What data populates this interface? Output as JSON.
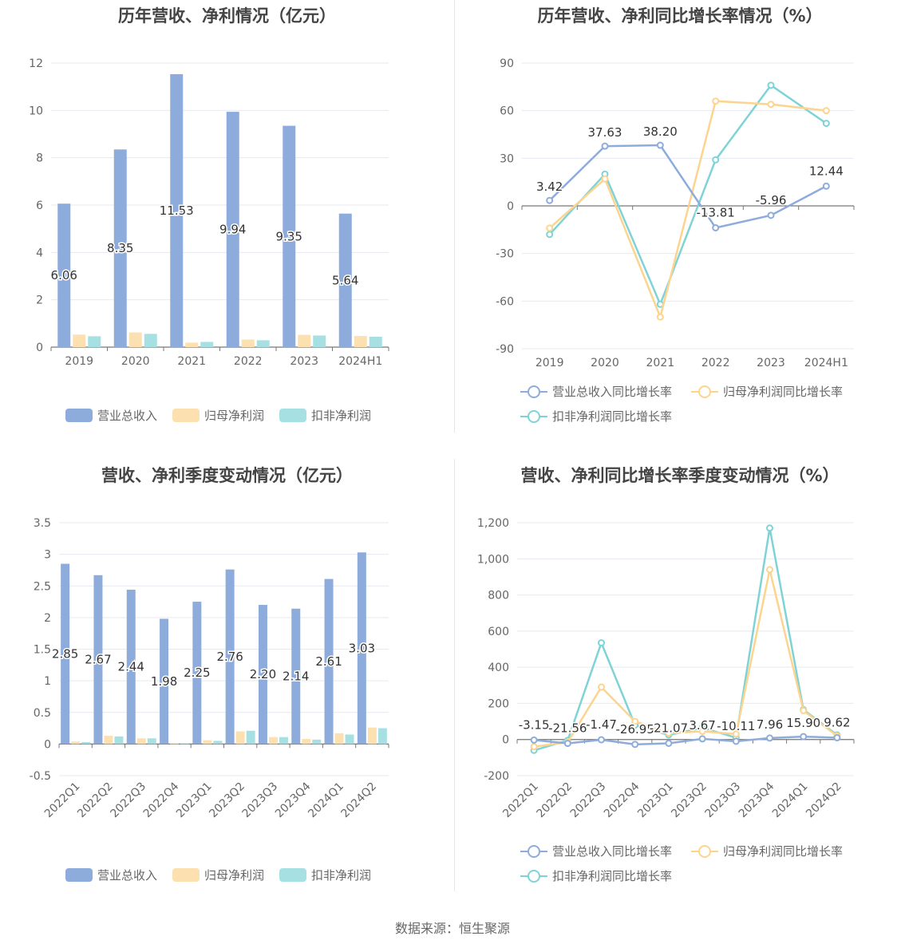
{
  "source": "数据来源：恒生聚源",
  "colors": {
    "revenue": "#8eacdb",
    "netprofit": "#fde0b0",
    "deducted": "#a6e0e3",
    "revenue_line": "#8eacdb",
    "netprofit_line": "#fdd48e",
    "deducted_line": "#7fd3d7"
  },
  "chart_data": [
    {
      "id": "annual-bars",
      "type": "bar",
      "title": "历年营收、净利情况（亿元）",
      "categories": [
        "2019",
        "2020",
        "2021",
        "2022",
        "2023",
        "2024H1"
      ],
      "ylim": [
        0,
        12
      ],
      "yticks": [
        "0",
        "2",
        "4",
        "6",
        "8",
        "10",
        "12"
      ],
      "grid": true,
      "legend_position": "bottom",
      "series": [
        {
          "name": "营业总收入",
          "values": [
            6.06,
            8.35,
            11.53,
            9.94,
            9.35,
            5.64
          ],
          "labels": [
            "6.06",
            "8.35",
            "11.53",
            "9.94",
            "9.35",
            "5.64"
          ]
        },
        {
          "name": "归母净利润",
          "values": [
            0.53,
            0.62,
            0.19,
            0.32,
            0.52,
            0.47
          ]
        },
        {
          "name": "扣非净利润",
          "values": [
            0.46,
            0.56,
            0.22,
            0.29,
            0.49,
            0.44
          ]
        }
      ]
    },
    {
      "id": "annual-growth",
      "type": "line",
      "title": "历年营收、净利同比增长率情况（%）",
      "categories": [
        "2019",
        "2020",
        "2021",
        "2022",
        "2023",
        "2024H1"
      ],
      "ylim": [
        -90,
        90
      ],
      "yticks": [
        "-90",
        "-60",
        "-30",
        "0",
        "30",
        "60",
        "90"
      ],
      "grid": true,
      "legend_position": "bottom",
      "series": [
        {
          "name": "营业总收入同比增长率",
          "values": [
            3.42,
            37.63,
            38.2,
            -13.81,
            -5.96,
            12.44
          ],
          "labels": [
            "3.42",
            "37.63",
            "38.20",
            "-13.81",
            "-5.96",
            "12.44"
          ]
        },
        {
          "name": "归母净利润同比增长率",
          "values": [
            -14,
            17,
            -70,
            66,
            64,
            60
          ]
        },
        {
          "name": "扣非净利润同比增长率",
          "values": [
            -18,
            20,
            -62,
            29,
            76,
            52
          ]
        }
      ]
    },
    {
      "id": "quarterly-bars",
      "type": "bar",
      "title": "营收、净利季度变动情况（亿元）",
      "categories": [
        "2022Q1",
        "2022Q2",
        "2022Q3",
        "2022Q4",
        "2023Q1",
        "2023Q2",
        "2023Q3",
        "2023Q4",
        "2024Q1",
        "2024Q2"
      ],
      "ylim": [
        -0.5,
        3.5
      ],
      "yticks": [
        "-0.5",
        "0",
        "0.5",
        "1",
        "1.5",
        "2",
        "2.5",
        "3",
        "3.5"
      ],
      "grid": true,
      "legend_position": "bottom",
      "series": [
        {
          "name": "营业总收入",
          "values": [
            2.85,
            2.67,
            2.44,
            1.98,
            2.25,
            2.76,
            2.2,
            2.14,
            2.61,
            3.03
          ],
          "labels": [
            "2.85",
            "2.67",
            "2.44",
            "1.98",
            "2.25",
            "2.76",
            "2.20",
            "2.14",
            "2.61",
            "3.03"
          ]
        },
        {
          "name": "归母净利润",
          "values": [
            0.04,
            0.13,
            0.09,
            0.01,
            0.06,
            0.2,
            0.11,
            0.08,
            0.17,
            0.26
          ]
        },
        {
          "name": "扣非净利润",
          "values": [
            0.03,
            0.12,
            0.09,
            0.01,
            0.05,
            0.21,
            0.11,
            0.07,
            0.15,
            0.25
          ]
        }
      ]
    },
    {
      "id": "quarterly-growth",
      "type": "line",
      "title": "营收、净利同比增长率季度变动情况（%）",
      "categories": [
        "2022Q1",
        "2022Q2",
        "2022Q3",
        "2022Q4",
        "2023Q1",
        "2023Q2",
        "2023Q3",
        "2023Q4",
        "2024Q1",
        "2024Q2"
      ],
      "ylim": [
        -200,
        1200
      ],
      "yticks": [
        "-200",
        "0",
        "200",
        "400",
        "600",
        "800",
        "1,000",
        "1,200"
      ],
      "grid": true,
      "legend_position": "bottom",
      "series": [
        {
          "name": "营业总收入同比增长率",
          "values": [
            -3.15,
            -21.56,
            -1.47,
            -26.95,
            -21.07,
            3.67,
            -10.11,
            7.96,
            15.9,
            9.62
          ],
          "labels": [
            "-3.15",
            "-21.56",
            "-1.47",
            "-26.95",
            "-21.07",
            "3.67",
            "-10.11",
            "7.96",
            "15.90",
            "9.62"
          ]
        },
        {
          "name": "归母净利润同比增长率",
          "values": [
            -40,
            -15,
            290,
            100,
            35,
            45,
            30,
            940,
            160,
            20
          ]
        },
        {
          "name": "扣非净利润同比增长率",
          "values": [
            -60,
            -5,
            535,
            80,
            25,
            65,
            10,
            1170,
            165,
            25
          ]
        }
      ]
    }
  ]
}
